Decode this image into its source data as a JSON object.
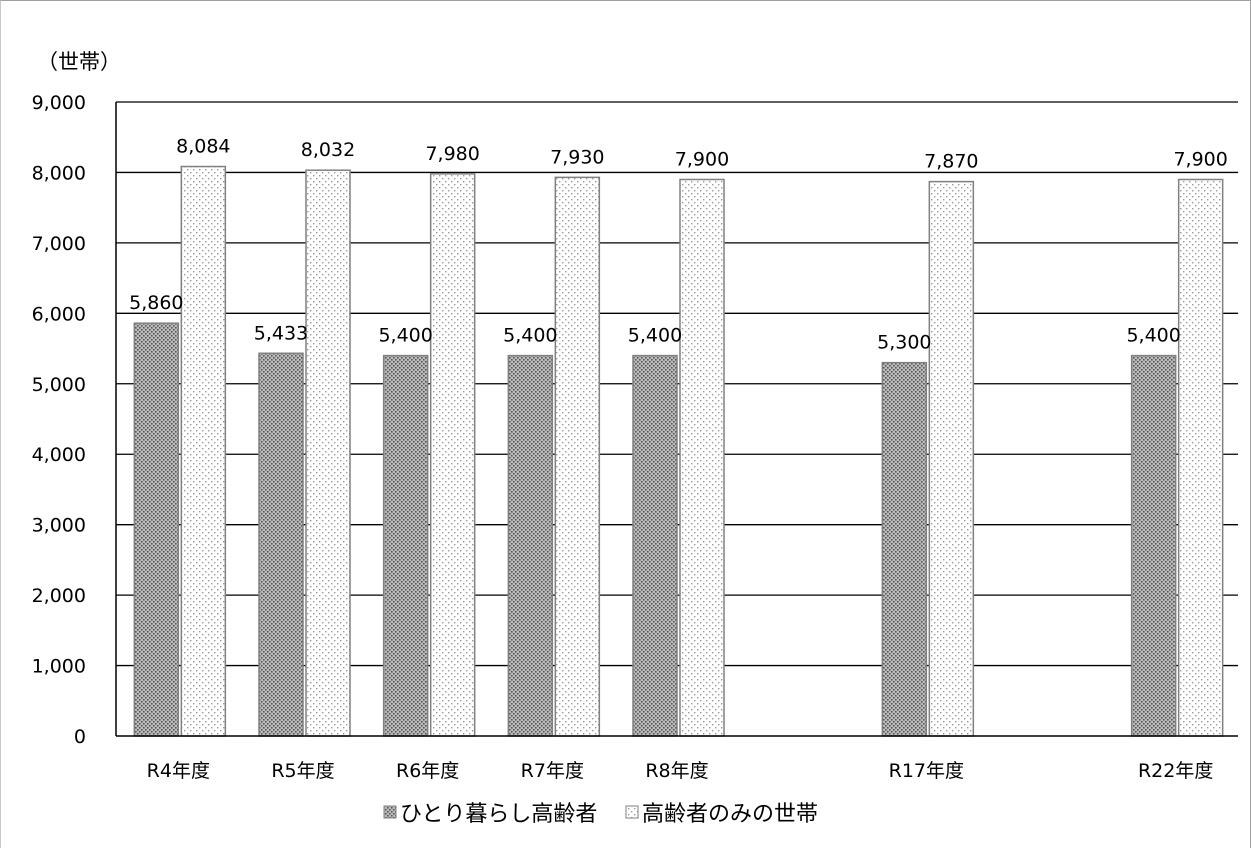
{
  "chart_data": {
    "type": "bar",
    "y_unit_label": "（世帯）",
    "categories": [
      "R4年度",
      "R5年度",
      "R6年度",
      "R7年度",
      "R8年度",
      "R17年度",
      "R22年度"
    ],
    "category_slots": [
      0,
      1,
      2,
      3,
      4,
      6,
      8
    ],
    "series": [
      {
        "name": "ひとり暮らし高齢者",
        "values": [
          5860,
          5433,
          5400,
          5400,
          5400,
          5300,
          5400
        ],
        "labels": [
          "5,860",
          "5,433",
          "5,400",
          "5,400",
          "5,400",
          "5,300",
          "5,400"
        ],
        "pattern": "dense-dots"
      },
      {
        "name": "高齢者のみの世帯",
        "values": [
          8084,
          8032,
          7980,
          7930,
          7900,
          7870,
          7900
        ],
        "labels": [
          "8,084",
          "8,032",
          "7,980",
          "7,930",
          "7,900",
          "7,870",
          "7,900"
        ],
        "pattern": "sparse-dots"
      }
    ],
    "ylim": [
      0,
      9000
    ],
    "yticks": [
      0,
      1000,
      2000,
      3000,
      4000,
      5000,
      6000,
      7000,
      8000,
      9000
    ],
    "ytick_labels": [
      "0",
      "1,000",
      "2,000",
      "3,000",
      "4,000",
      "5,000",
      "6,000",
      "7,000",
      "8,000",
      "9,000"
    ],
    "grid": true,
    "legend_position": "bottom",
    "colors": {
      "bar_outline": "#808080",
      "series1_fill": "#bcbcbc",
      "series1_dots": "#555555",
      "series2_fill": "#ffffff",
      "series2_dots": "#9a9a9a",
      "grid": "#000000",
      "axis": "#000000"
    }
  }
}
